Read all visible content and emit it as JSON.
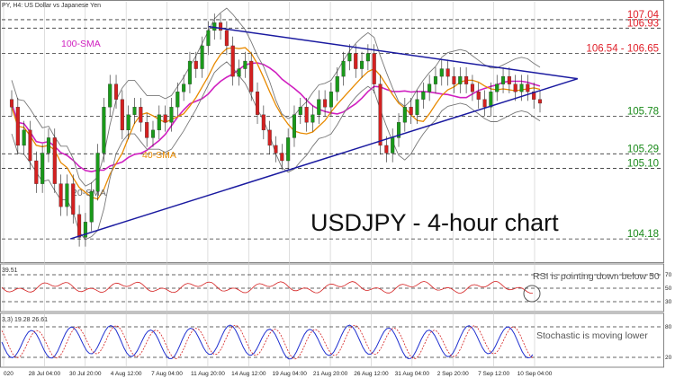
{
  "header": {
    "symbol_line": "PY, H4: US Dollar vs Japanese Yen"
  },
  "chart_data": {
    "type": "candlestick",
    "title": "USDJPY - 4-hour chart",
    "ylim": [
      103.9,
      107.25
    ],
    "x_ticks": [
      "020",
      "28 Jul 04:00",
      "30 Jul 20:00",
      "4 Aug 12:00",
      "7 Aug 04:00",
      "11 Aug 20:00",
      "14 Aug 12:00",
      "19 Aug 04:00",
      "21 Aug 20:00",
      "26 Aug 12:00",
      "31 Aug 04:00",
      "2 Sep 20:00",
      "7 Sep 12:00",
      "10 Sep 04:00"
    ],
    "price_levels": [
      {
        "label": "107.04",
        "value": 107.04,
        "color": "#e0202a"
      },
      {
        "label": "106.93",
        "value": 106.93,
        "color": "#e0202a"
      },
      {
        "label": "106.54 - 106.65",
        "value": 106.6,
        "color": "#e0202a"
      },
      {
        "label": "105.78",
        "value": 105.78,
        "color": "#1a8a1a"
      },
      {
        "label": "105.29",
        "value": 105.29,
        "color": "#1a8a1a"
      },
      {
        "label": "105.10",
        "value": 105.1,
        "color": "#1a8a1a"
      },
      {
        "label": "104.18",
        "value": 104.18,
        "color": "#1a8a1a"
      }
    ],
    "indicator_labels": [
      {
        "label": "100-SMA",
        "color": "#d020c0"
      },
      {
        "label": "40-SMA",
        "color": "#e88a00"
      },
      {
        "label": "20-SMA",
        "color": "#666666"
      }
    ],
    "candles_close": [
      105.9,
      105.4,
      105.6,
      105.2,
      104.9,
      105.3,
      105.5,
      104.9,
      104.6,
      104.9,
      104.5,
      104.2,
      104.4,
      104.8,
      105.3,
      105.9,
      106.2,
      106.0,
      105.6,
      105.8,
      105.9,
      105.7,
      105.5,
      105.6,
      105.8,
      105.7,
      105.9,
      106.1,
      106.2,
      106.5,
      106.4,
      106.7,
      106.9,
      107.0,
      106.9,
      106.7,
      106.3,
      106.4,
      106.5,
      106.1,
      105.8,
      105.6,
      105.4,
      105.3,
      105.2,
      105.5,
      105.8,
      105.9,
      105.7,
      105.8,
      106.0,
      105.9,
      106.1,
      106.3,
      106.5,
      106.6,
      106.4,
      106.5,
      106.6,
      106.2,
      105.4,
      105.3,
      105.5,
      105.7,
      105.9,
      105.8,
      106.0,
      106.1,
      106.2,
      106.3,
      106.4,
      106.3,
      106.2,
      106.3,
      106.2,
      106.1,
      106.0,
      105.9,
      106.1,
      106.2,
      106.3,
      106.2,
      106.1,
      106.2,
      106.1,
      106.0,
      105.95
    ],
    "upper_trendline": [
      [
        106.95,
        0.31
      ],
      [
        106.27,
        0.87
      ]
    ],
    "lower_trendline": [
      [
        104.18,
        0.1
      ],
      [
        106.27,
        0.87
      ]
    ],
    "rsi": {
      "label": "39.51",
      "levels": [
        "70",
        "50",
        "30"
      ],
      "annotation": "RSI is pointing down below 50"
    },
    "stochastic": {
      "label": "3,3) 19.28 26.61",
      "levels": [
        "80",
        "20"
      ],
      "annotation": "Stochastic is moving lower"
    }
  },
  "colors": {
    "bull": "#1a9a1a",
    "bear": "#d42020",
    "trend": "#1a1aa0",
    "rsi_line": "#d42020",
    "stoch_main": "#2030d0",
    "stoch_signal": "#d42020"
  }
}
